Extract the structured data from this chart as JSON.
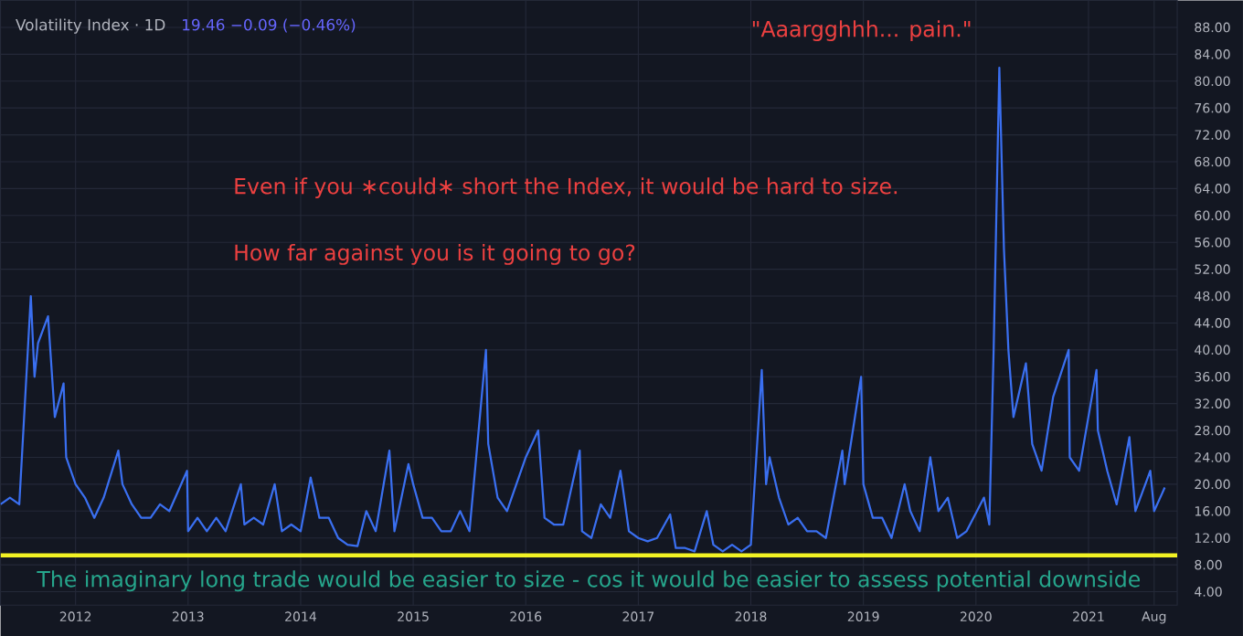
{
  "chart_data": {
    "type": "line",
    "title": "Volatility Index · 1D",
    "subtitle": "19.46 −0.09 (−0.46%)",
    "annotations": [
      "Even if you ∗could∗ short the Index, it would be hard to size.",
      "How far against you is it going to go?",
      "\"Aaargghhh... pain.\"",
      "The imaginary long trade would be easier to size - cos it would be easier to assess potential downside"
    ],
    "x": [
      "2011-05",
      "2011-06",
      "2011-07",
      "2011-08-08",
      "2011-08-20",
      "2011-09",
      "2011-10-03",
      "2011-10-25",
      "2011-11-23",
      "2011-12",
      "2012-01",
      "2012-02",
      "2012-03",
      "2012-04",
      "2012-05-18",
      "2012-06",
      "2012-07",
      "2012-08",
      "2012-09",
      "2012-10",
      "2012-11",
      "2012-12-28",
      "2013-01",
      "2013-02",
      "2013-03",
      "2013-04",
      "2013-05",
      "2013-06-20",
      "2013-07",
      "2013-08",
      "2013-09",
      "2013-10-08",
      "2013-11",
      "2013-12",
      "2014-01",
      "2014-02-03",
      "2014-03",
      "2014-04",
      "2014-05",
      "2014-06",
      "2014-07-03",
      "2014-08",
      "2014-09",
      "2014-10-15",
      "2014-11",
      "2014-12-16",
      "2015-01",
      "2015-02",
      "2015-03",
      "2015-04",
      "2015-05",
      "2015-06",
      "2015-07",
      "2015-08-24",
      "2015-09",
      "2015-10",
      "2015-11",
      "2015-12",
      "2016-01",
      "2016-02-11",
      "2016-03",
      "2016-04",
      "2016-05",
      "2016-06-24",
      "2016-07",
      "2016-08",
      "2016-09",
      "2016-10",
      "2016-11-04",
      "2016-12",
      "2017-01",
      "2017-02",
      "2017-03",
      "2017-04-13",
      "2017-05",
      "2017-06",
      "2017-07",
      "2017-08-10",
      "2017-09",
      "2017-10",
      "2017-11",
      "2017-12",
      "2018-01",
      "2018-02-06",
      "2018-02-20",
      "2018-03",
      "2018-04",
      "2018-05",
      "2018-06",
      "2018-07",
      "2018-08",
      "2018-09",
      "2018-10-24",
      "2018-11",
      "2018-12-24",
      "2019-01",
      "2019-02",
      "2019-03",
      "2019-04",
      "2019-05-13",
      "2019-06",
      "2019-07",
      "2019-08-05",
      "2019-09",
      "2019-10",
      "2019-11",
      "2019-12",
      "2020-01-27",
      "2020-02-14",
      "2020-02-28",
      "2020-03-16",
      "2020-03-31",
      "2020-04-15",
      "2020-05",
      "2020-06-11",
      "2020-07",
      "2020-08",
      "2020-09-08",
      "2020-10-28",
      "2020-11",
      "2020-12",
      "2021-01-27",
      "2021-02",
      "2021-03",
      "2021-04",
      "2021-05-12",
      "2021-06",
      "2021-07-19",
      "2021-08",
      "2021-09-05"
    ],
    "series": [
      {
        "color": "#3a6ff0",
        "values": [
          17,
          18,
          17,
          48,
          36,
          41,
          45,
          30,
          35,
          24,
          20,
          18,
          15,
          18,
          25,
          20,
          17,
          15,
          15,
          17,
          16,
          22,
          13,
          15,
          13,
          15,
          13,
          20,
          14,
          15,
          14,
          20,
          13,
          14,
          13,
          21,
          15,
          15,
          12,
          11,
          10.8,
          16,
          13,
          25,
          13,
          23,
          20,
          15,
          15,
          13,
          13,
          16,
          13,
          40,
          26,
          18,
          16,
          20,
          24,
          28,
          15,
          14,
          14,
          25,
          13,
          12,
          17,
          15,
          22,
          13,
          12,
          11.5,
          12,
          15.5,
          10.5,
          10.5,
          10,
          16,
          11,
          10,
          11,
          10,
          11,
          37,
          20,
          24,
          18,
          14,
          15,
          13,
          13,
          12,
          25,
          20,
          36,
          20,
          15,
          15,
          12,
          20,
          16,
          13,
          24,
          16,
          18,
          12,
          13,
          18,
          14,
          40,
          82,
          55,
          40,
          30,
          38,
          26,
          22,
          33,
          40,
          24,
          22,
          37,
          28,
          22,
          17,
          27,
          16,
          22,
          16,
          19.5
        ]
      }
    ],
    "xlim": [
      "2011-05-01",
      "2021-10-15"
    ],
    "xticks": [
      "2012",
      "2013",
      "2014",
      "2015",
      "2016",
      "2017",
      "2018",
      "2019",
      "2020",
      "2021",
      {
        "value": "2021-08",
        "label": "Aug"
      }
    ],
    "ylim": [
      2,
      92
    ],
    "yticks": [
      {
        "value": 4,
        "label": "4.00"
      },
      {
        "value": 8,
        "label": "8.00"
      },
      {
        "value": 12,
        "label": "12.00"
      },
      {
        "value": 16,
        "label": "16.00"
      },
      {
        "value": 20,
        "label": "20.00"
      },
      {
        "value": 24,
        "label": "24.00"
      },
      {
        "value": 28,
        "label": "28.00"
      },
      {
        "value": 32,
        "label": "32.00"
      },
      {
        "value": 36,
        "label": "36.00"
      },
      {
        "value": 40,
        "label": "40.00"
      },
      {
        "value": 44,
        "label": "44.00"
      },
      {
        "value": 48,
        "label": "48.00"
      },
      {
        "value": 52,
        "label": "52.00"
      },
      {
        "value": 56,
        "label": "56.00"
      },
      {
        "value": 60,
        "label": "60.00"
      },
      {
        "value": 64,
        "label": "64.00"
      },
      {
        "value": 68,
        "label": "68.00"
      },
      {
        "value": 72,
        "label": "72.00"
      },
      {
        "value": 76,
        "label": "76.00"
      },
      {
        "value": 80,
        "label": "80.00"
      },
      {
        "value": 84,
        "label": "84.00"
      },
      {
        "value": 88,
        "label": "88.00"
      }
    ],
    "ref_lines": [
      {
        "axis": "y",
        "value": 9.4,
        "color": "#f2f224"
      }
    ],
    "grid": true,
    "marker": "none",
    "line_style": "solid"
  }
}
